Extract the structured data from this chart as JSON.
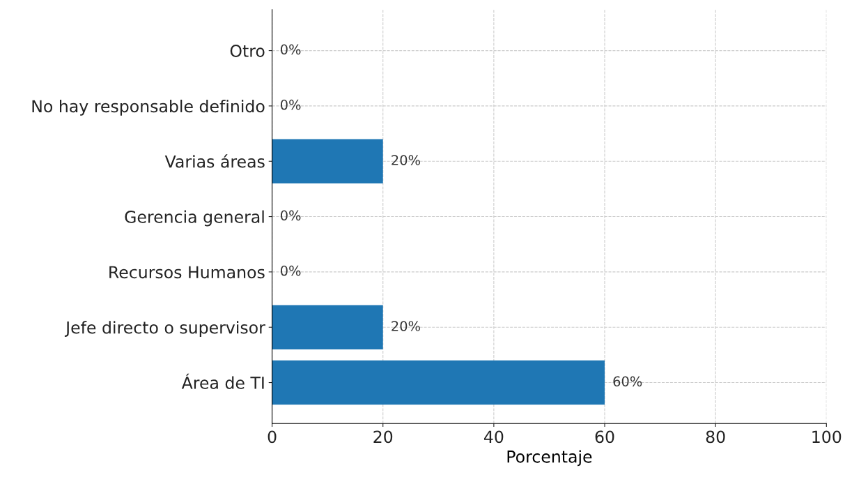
{
  "chart_data": {
    "type": "bar",
    "orientation": "horizontal",
    "xlabel": "Porcentaje",
    "categories": [
      "Otro",
      "No hay responsable definido",
      "Varias áreas",
      "Gerencia general",
      "Recursos Humanos",
      "Jefe directo o supervisor",
      "Área de TI"
    ],
    "values": [
      0,
      0,
      20,
      0,
      0,
      20,
      60
    ],
    "value_labels": [
      "0%",
      "0%",
      "20%",
      "0%",
      "0%",
      "20%",
      "60%"
    ],
    "color": "#1f77b4",
    "xlim": [
      0,
      100
    ],
    "xticks": [
      0,
      20,
      40,
      60,
      80,
      100
    ],
    "grid": true
  }
}
